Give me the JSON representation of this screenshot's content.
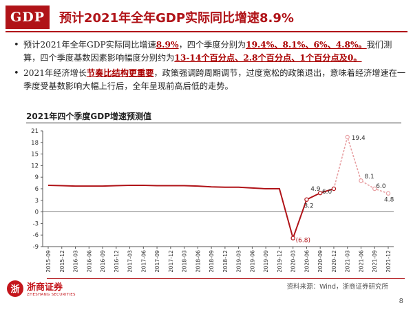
{
  "header": {
    "badge": "GDP",
    "title": "预计2021年全年GDP实际同比增速8.9%"
  },
  "bullets": [
    {
      "parts": [
        {
          "t": "预计2021年全年GDP实际同比增速",
          "hl": false
        },
        {
          "t": "8.9%",
          "hl": true
        },
        {
          "t": "，四个季度分别为",
          "hl": false
        },
        {
          "t": "19.4%、8.1%、6%、4.8%。",
          "hl": true
        },
        {
          "t": "我们测算，四个季度基数因素影响幅度分别约为",
          "hl": false
        },
        {
          "t": "13-14个百分点、2.8个百分点、1个百分点及0。",
          "hl": true
        }
      ]
    },
    {
      "parts": [
        {
          "t": "2021年经济增长",
          "hl": false
        },
        {
          "t": "节奏比结构更重要",
          "hl": true
        },
        {
          "t": "，政策强调跨周期调节，过度宽松的政策退出，意味着经济增速在一季度受基数影响大幅上行后，全年呈现前高后低的走势。",
          "hl": false
        }
      ]
    }
  ],
  "chart_title": "2021年四个季度GDP增速预测值",
  "chart_data": {
    "type": "line",
    "categories": [
      "2015-09",
      "2015-12",
      "2016-03",
      "2016-06",
      "2016-09",
      "2016-12",
      "2017-03",
      "2017-06",
      "2017-09",
      "2017-12",
      "2018-03",
      "2018-06",
      "2018-09",
      "2018-12",
      "2019-03",
      "2019-06",
      "2019-09",
      "2019-12",
      "2020-03",
      "2020-06",
      "2020-09",
      "2020-12",
      "2021-03",
      "2021-06",
      "2021-09",
      "2021-12"
    ],
    "series": [
      {
        "values": [
          6.9,
          6.8,
          6.7,
          6.7,
          6.7,
          6.8,
          6.9,
          6.9,
          6.8,
          6.8,
          6.8,
          6.7,
          6.5,
          6.4,
          6.4,
          6.2,
          6.0,
          6.0,
          -6.8,
          3.2,
          4.9,
          6.0,
          19.4,
          8.1,
          6.0,
          4.8
        ],
        "actual_count": 22,
        "color_actual": "#b01318",
        "color_forecast": "#e8a0a3"
      }
    ],
    "ylim": [
      -9,
      21
    ],
    "yticks": [
      -9,
      -6,
      -3,
      0,
      3,
      6,
      9,
      12,
      15,
      18,
      21
    ],
    "ytick_labels": [
      "-9",
      "-6",
      "-3",
      "0",
      "3",
      "6",
      "9",
      "12",
      "15",
      "18",
      "21"
    ],
    "data_labels": [
      {
        "index": 18,
        "text": "(6.8)",
        "color": "#b01318"
      },
      {
        "index": 19,
        "text": "3.2",
        "color": "#333"
      },
      {
        "index": 20,
        "text": "4.9",
        "color": "#333"
      },
      {
        "index": 21,
        "text": "6.0",
        "color": "#333"
      },
      {
        "index": 22,
        "text": "19.4",
        "color": "#333"
      },
      {
        "index": 23,
        "text": "8.1",
        "color": "#333"
      },
      {
        "index": 24,
        "text": "6.0",
        "color": "#333"
      },
      {
        "index": 25,
        "text": "4.8",
        "color": "#333"
      }
    ],
    "grid": false
  },
  "footer": {
    "source": "资料来源：Wind，浙商证券研究所",
    "logo_cn": "浙商证券",
    "logo_en": "ZHESHANG SECURITIES",
    "page": "8"
  }
}
